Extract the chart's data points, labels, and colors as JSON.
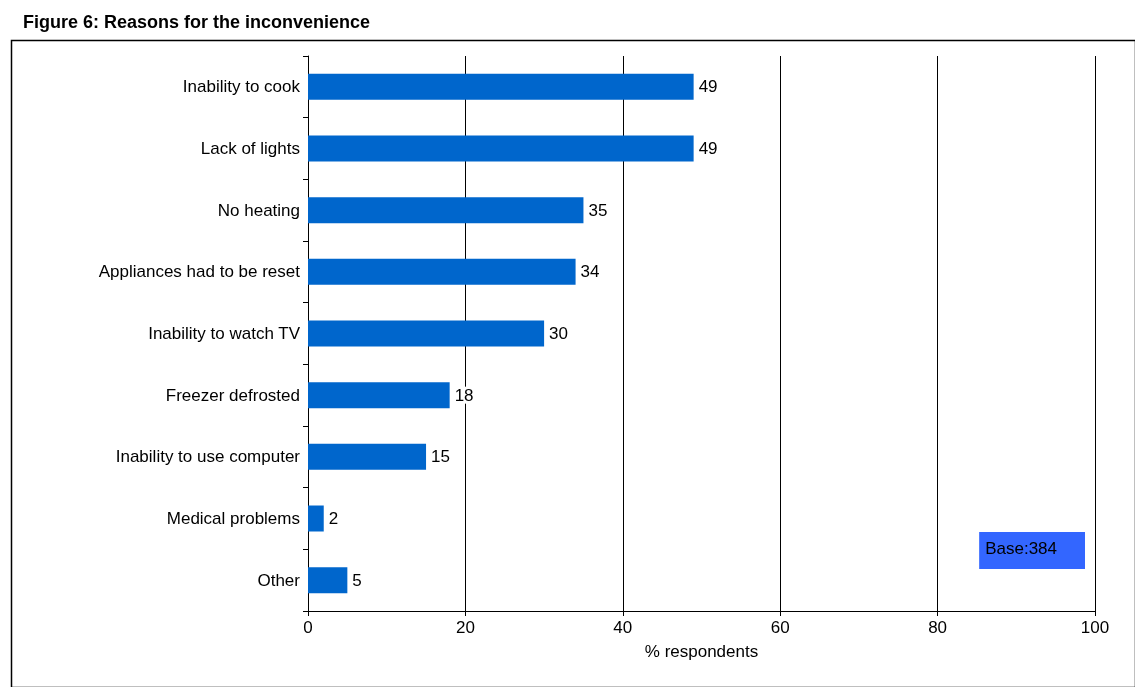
{
  "chart_data": {
    "type": "bar",
    "orientation": "horizontal",
    "title": "Figure 6: Reasons for the inconvenience",
    "xlabel": "% respondents",
    "categories": [
      "Inability to cook",
      "Lack of lights",
      "No heating",
      "Appliances had to be reset",
      "Inability to watch TV",
      "Freezer defrosted",
      "Inability to use computer",
      "Medical problems",
      "Other"
    ],
    "values": [
      49,
      49,
      35,
      34,
      30,
      18,
      15,
      2,
      5
    ],
    "color": "#0066cc",
    "data_labels": true,
    "xlim": [
      0,
      100
    ],
    "xticks": [
      0,
      20,
      40,
      60,
      80,
      100
    ],
    "grid": "x",
    "annotations": [
      "Base:384"
    ]
  }
}
